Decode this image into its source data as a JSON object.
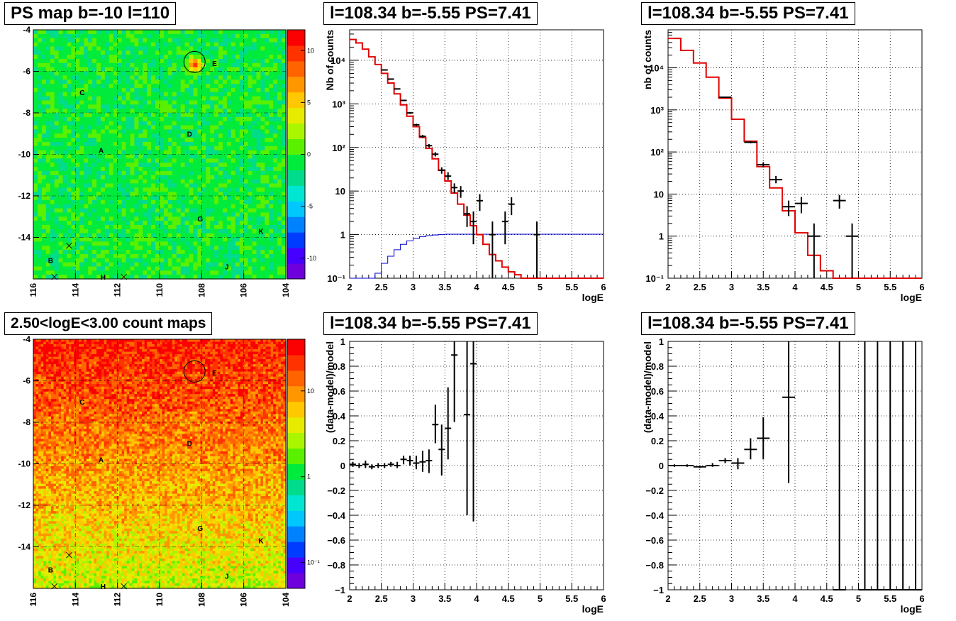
{
  "colors": {
    "model": "#e00000",
    "background_model": "#0000cc",
    "data": "#000000"
  },
  "chart_data": [
    {
      "id": "ps_map",
      "type": "heatmap",
      "title": "PS map b=-10 l=110",
      "xlim": [
        116,
        104
      ],
      "ylim": [
        -16,
        -4
      ],
      "x_ticks": [
        "116",
        "114",
        "112",
        "110",
        "108",
        "106",
        "104"
      ],
      "y_ticks": [
        "-4",
        "-6",
        "-8",
        "-10",
        "-12",
        "-14"
      ],
      "colorbar_ticks": [
        "10",
        "5",
        "0",
        "-5",
        "-10"
      ],
      "colorbar_range": [
        -12,
        12
      ],
      "grid": true,
      "circle": {
        "l": 108.34,
        "b": -5.55
      },
      "sources": [
        {
          "label": "E",
          "l": 107.5,
          "b": -5.6
        },
        {
          "label": "C",
          "l": 113.8,
          "b": -7.0
        },
        {
          "label": "D",
          "l": 108.7,
          "b": -9.0
        },
        {
          "label": "A",
          "l": 112.9,
          "b": -9.8
        },
        {
          "label": "G",
          "l": 108.2,
          "b": -13.1
        },
        {
          "label": "K",
          "l": 105.3,
          "b": -13.7
        },
        {
          "label": "B",
          "l": 115.3,
          "b": -15.1
        },
        {
          "label": "J",
          "l": 106.9,
          "b": -15.4
        },
        {
          "label": "H",
          "l": 112.8,
          "b": -15.9
        }
      ],
      "cross_markers": [
        {
          "l": 114.3,
          "b": -14.4
        },
        {
          "l": 115.0,
          "b": -15.9
        },
        {
          "l": 111.7,
          "b": -15.9
        }
      ]
    },
    {
      "id": "spectrum_1",
      "type": "line",
      "title": "l=108.34 b=-5.55 PS=7.41",
      "xlabel": "logE",
      "ylabel": "Nb of counts",
      "log_y": true,
      "xlim": [
        2,
        6
      ],
      "ylim": [
        0.1,
        50000
      ],
      "x_ticks": [
        "2",
        "2.5",
        "3",
        "3.5",
        "4",
        "4.5",
        "5",
        "5.5",
        "6"
      ],
      "y_ticks": [
        "10⁻¹",
        "1",
        "10",
        "10²",
        "10³",
        "10⁴"
      ],
      "grid": true,
      "bin_width": 0.1,
      "model_edges": [
        2.0,
        2.1,
        2.2,
        2.3,
        2.4,
        2.5,
        2.6,
        2.7,
        2.8,
        2.9,
        3.0,
        3.1,
        3.2,
        3.3,
        3.4,
        3.5,
        3.6,
        3.7,
        3.8,
        3.9,
        4.0,
        4.1,
        4.2,
        4.3,
        4.4,
        4.5,
        4.6,
        4.7,
        6.0
      ],
      "model_values": [
        30000,
        25000,
        18000,
        12000,
        8000,
        5000,
        3000,
        1700,
        950,
        520,
        300,
        170,
        95,
        55,
        30,
        17,
        9,
        5,
        2.8,
        1.6,
        1,
        0.6,
        0.35,
        0.25,
        0.18,
        0.14,
        0.12,
        0.1
      ],
      "background_edges": [
        2.0,
        2.4,
        2.5,
        2.6,
        2.7,
        2.8,
        2.9,
        3.0,
        3.1,
        3.2,
        3.3,
        3.4,
        3.5,
        6.0
      ],
      "background_values": [
        0.1,
        0.13,
        0.22,
        0.32,
        0.45,
        0.6,
        0.72,
        0.82,
        0.9,
        0.95,
        0.98,
        1.0,
        1.02
      ],
      "points": [
        {
          "x": 2.55,
          "y": 6000,
          "lo": 5900,
          "hi": 6100
        },
        {
          "x": 2.65,
          "y": 3700,
          "lo": 3620,
          "hi": 3780
        },
        {
          "x": 2.75,
          "y": 2200,
          "lo": 2150,
          "hi": 2250
        },
        {
          "x": 2.85,
          "y": 1200,
          "lo": 1160,
          "hi": 1240
        },
        {
          "x": 2.95,
          "y": 620,
          "lo": 590,
          "hi": 650
        },
        {
          "x": 3.05,
          "y": 330,
          "lo": 310,
          "hi": 350
        },
        {
          "x": 3.15,
          "y": 180,
          "lo": 166,
          "hi": 194
        },
        {
          "x": 3.25,
          "y": 110,
          "lo": 100,
          "hi": 120
        },
        {
          "x": 3.35,
          "y": 70,
          "lo": 62,
          "hi": 78
        },
        {
          "x": 3.45,
          "y": 30,
          "lo": 25,
          "hi": 35
        },
        {
          "x": 3.55,
          "y": 22,
          "lo": 18,
          "hi": 27
        },
        {
          "x": 3.65,
          "y": 12,
          "lo": 9,
          "hi": 15
        },
        {
          "x": 3.75,
          "y": 10,
          "lo": 7,
          "hi": 13
        },
        {
          "x": 3.85,
          "y": 3,
          "lo": 1.5,
          "hi": 4.5
        },
        {
          "x": 3.95,
          "y": 2,
          "lo": 0.6,
          "hi": 3.4
        },
        {
          "x": 4.05,
          "y": 6,
          "lo": 3.5,
          "hi": 8.5
        },
        {
          "x": 4.25,
          "y": 1,
          "lo": 0.1,
          "hi": 2
        },
        {
          "x": 4.45,
          "y": 2,
          "lo": 0.6,
          "hi": 3.4
        },
        {
          "x": 4.55,
          "y": 5,
          "lo": 2.8,
          "hi": 7.2
        },
        {
          "x": 4.95,
          "y": 1,
          "lo": 0.1,
          "hi": 2
        }
      ]
    },
    {
      "id": "spectrum_2",
      "type": "line",
      "title": "l=108.34 b=-5.55 PS=7.41",
      "xlabel": "logE",
      "ylabel": "nb of counts",
      "log_y": true,
      "xlim": [
        2,
        6
      ],
      "ylim": [
        0.1,
        80000
      ],
      "x_ticks": [
        "2",
        "2.5",
        "3",
        "3.5",
        "4",
        "4.5",
        "5",
        "5.5",
        "6"
      ],
      "y_ticks": [
        "10⁻¹",
        "1",
        "10",
        "10²",
        "10³",
        "10⁴"
      ],
      "grid": true,
      "bin_width": 0.2,
      "model_edges": [
        2.0,
        2.2,
        2.4,
        2.6,
        2.8,
        3.0,
        3.2,
        3.4,
        3.6,
        3.8,
        4.0,
        4.2,
        4.4,
        4.6,
        6.0
      ],
      "model_values": [
        50000,
        26000,
        13000,
        6000,
        1900,
        600,
        180,
        45,
        14,
        4,
        1.2,
        0.35,
        0.15,
        0.1
      ],
      "points": [
        {
          "x": 2.9,
          "y": 2000,
          "lo": 1950,
          "hi": 2050
        },
        {
          "x": 3.3,
          "y": 170,
          "lo": 160,
          "hi": 180
        },
        {
          "x": 3.5,
          "y": 50,
          "lo": 43,
          "hi": 57
        },
        {
          "x": 3.7,
          "y": 22,
          "lo": 18,
          "hi": 27
        },
        {
          "x": 3.9,
          "y": 5,
          "lo": 3,
          "hi": 7
        },
        {
          "x": 4.1,
          "y": 6,
          "lo": 3.5,
          "hi": 8.5
        },
        {
          "x": 4.3,
          "y": 1,
          "lo": 0.1,
          "hi": 2
        },
        {
          "x": 4.7,
          "y": 7,
          "lo": 4.5,
          "hi": 9.5
        },
        {
          "x": 4.9,
          "y": 1,
          "lo": 0.1,
          "hi": 2
        }
      ]
    },
    {
      "id": "count_map",
      "type": "heatmap",
      "title": "2.50<logE<3.00 count maps",
      "xlim": [
        116,
        104
      ],
      "ylim": [
        -16,
        -4
      ],
      "x_ticks": [
        "116",
        "114",
        "112",
        "110",
        "108",
        "106",
        "104"
      ],
      "y_ticks": [
        "-4",
        "-6",
        "-8",
        "-10",
        "-12",
        "-14"
      ],
      "colorbar_ticks": [
        "10",
        "1",
        "10⁻¹"
      ],
      "colorbar_log": true,
      "colorbar_range": [
        0.05,
        40
      ],
      "grid": true,
      "circle": {
        "l": 108.34,
        "b": -5.55
      },
      "sources": [
        {
          "label": "E",
          "l": 107.5,
          "b": -5.6
        },
        {
          "label": "C",
          "l": 113.8,
          "b": -7.0
        },
        {
          "label": "D",
          "l": 108.7,
          "b": -9.0
        },
        {
          "label": "A",
          "l": 112.9,
          "b": -9.8
        },
        {
          "label": "G",
          "l": 108.2,
          "b": -13.1
        },
        {
          "label": "K",
          "l": 105.3,
          "b": -13.7
        },
        {
          "label": "B",
          "l": 115.3,
          "b": -15.1
        },
        {
          "label": "J",
          "l": 106.9,
          "b": -15.4
        },
        {
          "label": "H",
          "l": 112.8,
          "b": -15.9
        }
      ],
      "cross_markers": [
        {
          "l": 114.3,
          "b": -14.4
        },
        {
          "l": 115.0,
          "b": -15.9
        },
        {
          "l": 111.7,
          "b": -15.9
        }
      ]
    },
    {
      "id": "residual_1",
      "type": "scatter",
      "title": "l=108.34 b=-5.55 PS=7.41",
      "xlabel": "logE",
      "ylabel": "(data-model)/model",
      "xlim": [
        2,
        6
      ],
      "ylim": [
        -1,
        1
      ],
      "x_ticks": [
        "2",
        "2.5",
        "3",
        "3.5",
        "4",
        "4.5",
        "5",
        "5.5",
        "6"
      ],
      "y_ticks": [
        "−1",
        "−0.8",
        "−0.6",
        "−0.4",
        "−0.2",
        "0",
        "0.2",
        "0.4",
        "0.6",
        "0.8",
        "1"
      ],
      "grid": true,
      "bin_width": 0.1,
      "points": [
        {
          "x": 2.05,
          "y": 0.01,
          "lo": -0.01,
          "hi": 0.03
        },
        {
          "x": 2.15,
          "y": 0.0,
          "lo": -0.02,
          "hi": 0.02
        },
        {
          "x": 2.25,
          "y": 0.01,
          "lo": -0.02,
          "hi": 0.04
        },
        {
          "x": 2.35,
          "y": -0.01,
          "lo": -0.03,
          "hi": 0.01
        },
        {
          "x": 2.45,
          "y": 0.0,
          "lo": -0.02,
          "hi": 0.02
        },
        {
          "x": 2.55,
          "y": 0.0,
          "lo": -0.02,
          "hi": 0.02
        },
        {
          "x": 2.65,
          "y": 0.01,
          "lo": -0.01,
          "hi": 0.03
        },
        {
          "x": 2.75,
          "y": 0.0,
          "lo": -0.02,
          "hi": 0.03
        },
        {
          "x": 2.85,
          "y": 0.05,
          "lo": 0.01,
          "hi": 0.08
        },
        {
          "x": 2.95,
          "y": 0.04,
          "lo": 0.0,
          "hi": 0.08
        },
        {
          "x": 3.05,
          "y": 0.02,
          "lo": -0.03,
          "hi": 0.08
        },
        {
          "x": 3.15,
          "y": 0.03,
          "lo": -0.05,
          "hi": 0.12
        },
        {
          "x": 3.25,
          "y": 0.04,
          "lo": -0.06,
          "hi": 0.13
        },
        {
          "x": 3.35,
          "y": 0.33,
          "lo": 0.18,
          "hi": 0.49
        },
        {
          "x": 3.45,
          "y": 0.13,
          "lo": -0.08,
          "hi": 0.33
        },
        {
          "x": 3.55,
          "y": 0.3,
          "lo": 0.05,
          "hi": 0.63
        },
        {
          "x": 3.65,
          "y": 0.89,
          "lo": 0.35,
          "hi": 1.0
        },
        {
          "x": 3.85,
          "y": 0.41,
          "lo": -0.4,
          "hi": 1.0
        },
        {
          "x": 3.95,
          "y": 0.82,
          "lo": -0.45,
          "hi": 1.0
        }
      ]
    },
    {
      "id": "residual_2",
      "type": "scatter",
      "title": "l=108.34 b=-5.55 PS=7.41",
      "xlabel": "logE",
      "ylabel": "(data-model)/model",
      "xlim": [
        2,
        6
      ],
      "ylim": [
        -1,
        1
      ],
      "x_ticks": [
        "2",
        "2.5",
        "3",
        "3.5",
        "4",
        "4.5",
        "5",
        "5.5",
        "6"
      ],
      "y_ticks": [
        "−1",
        "−0.8",
        "−0.6",
        "−0.4",
        "−0.2",
        "0",
        "0.2",
        "0.4",
        "0.6",
        "0.8",
        "1"
      ],
      "grid": true,
      "bin_width": 0.2,
      "points": [
        {
          "x": 2.1,
          "y": 0.0,
          "lo": -0.01,
          "hi": 0.01
        },
        {
          "x": 2.3,
          "y": 0.0,
          "lo": -0.01,
          "hi": 0.01
        },
        {
          "x": 2.5,
          "y": -0.01,
          "lo": -0.02,
          "hi": 0.0
        },
        {
          "x": 2.7,
          "y": 0.0,
          "lo": -0.01,
          "hi": 0.02
        },
        {
          "x": 2.9,
          "y": 0.04,
          "lo": 0.02,
          "hi": 0.06
        },
        {
          "x": 3.1,
          "y": 0.02,
          "lo": -0.03,
          "hi": 0.06
        },
        {
          "x": 3.3,
          "y": 0.13,
          "lo": 0.05,
          "hi": 0.22
        },
        {
          "x": 3.5,
          "y": 0.22,
          "lo": 0.05,
          "hi": 0.39
        },
        {
          "x": 3.9,
          "y": 0.55,
          "lo": -0.14,
          "hi": 1.0
        },
        {
          "x": 4.7,
          "y": -1.0,
          "lo": -1.0,
          "hi": 1.0
        },
        {
          "x": 5.1,
          "y": -1.0,
          "lo": -1.0,
          "hi": 1.0
        },
        {
          "x": 5.3,
          "y": -1.0,
          "lo": -1.0,
          "hi": 1.0
        },
        {
          "x": 5.5,
          "y": -1.0,
          "lo": -1.0,
          "hi": 1.0
        },
        {
          "x": 5.7,
          "y": -1.0,
          "lo": -1.0,
          "hi": 1.0
        },
        {
          "x": 5.9,
          "y": -1.0,
          "lo": -1.0,
          "hi": 1.0
        }
      ]
    }
  ]
}
